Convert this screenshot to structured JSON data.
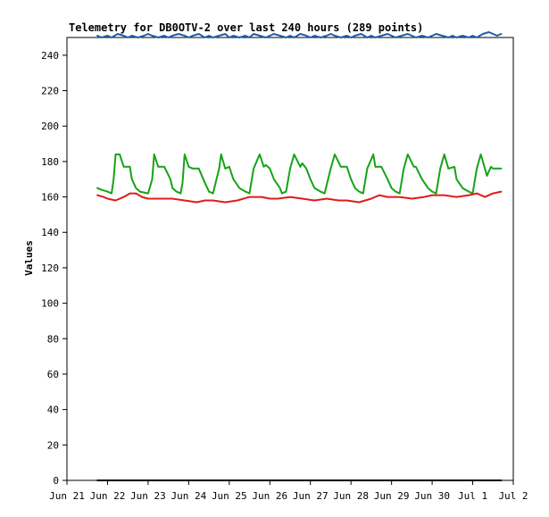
{
  "chart_data": {
    "type": "line",
    "title": "Telemetry for DB0OTV-2 over last 240 hours (289 points)",
    "ylabel": "Values",
    "xlabel": "",
    "ylim": [
      0,
      250
    ],
    "yticks": [
      0,
      20,
      40,
      60,
      80,
      100,
      120,
      140,
      160,
      180,
      200,
      220,
      240
    ],
    "xticks": [
      "Jun 21",
      "Jun 22",
      "Jun 23",
      "Jun 24",
      "Jun 25",
      "Jun 26",
      "Jun 27",
      "Jun 28",
      "Jun 29",
      "Jun 30",
      "Jul 1",
      "Jul 2"
    ],
    "grid": false,
    "series": [
      {
        "color": "#1f5fa8",
        "x": [
          0.75,
          0.85,
          1.0,
          1.1,
          1.25,
          1.4,
          1.5,
          1.6,
          1.75,
          1.9,
          2.0,
          2.1,
          2.25,
          2.4,
          2.5,
          2.6,
          2.75,
          2.9,
          3.0,
          3.1,
          3.25,
          3.4,
          3.5,
          3.6,
          3.75,
          3.9,
          4.0,
          4.1,
          4.25,
          4.4,
          4.5,
          4.6,
          4.75,
          4.9,
          5.0,
          5.1,
          5.25,
          5.4,
          5.5,
          5.6,
          5.75,
          5.9,
          6.0,
          6.1,
          6.25,
          6.4,
          6.5,
          6.6,
          6.75,
          6.9,
          7.0,
          7.1,
          7.25,
          7.4,
          7.5,
          7.6,
          7.75,
          7.9,
          8.0,
          8.1,
          8.25,
          8.4,
          8.5,
          8.6,
          8.75,
          8.9,
          9.0,
          9.1,
          9.25,
          9.4,
          9.5,
          9.6,
          9.75,
          9.9,
          10.0,
          10.1,
          10.25,
          10.4,
          10.5,
          10.6,
          10.7
        ],
        "y": [
          251,
          250,
          251,
          250,
          252,
          251,
          250,
          251,
          250,
          251,
          252,
          251,
          250,
          251,
          250,
          251,
          252,
          251,
          250,
          251,
          252,
          250,
          251,
          250,
          251,
          252,
          250,
          251,
          250,
          251,
          250,
          252,
          251,
          250,
          251,
          252,
          251,
          250,
          251,
          250,
          252,
          251,
          250,
          251,
          250,
          251,
          252,
          251,
          250,
          251,
          250,
          251,
          252,
          250,
          251,
          250,
          251,
          252,
          251,
          250,
          251,
          252,
          251,
          250,
          251,
          250,
          251,
          252,
          251,
          250,
          251,
          250,
          251,
          250,
          251,
          250,
          252,
          253,
          252,
          251,
          252
        ]
      },
      {
        "color": "#17a317",
        "x": [
          0.75,
          0.85,
          1.0,
          1.1,
          1.15,
          1.2,
          1.3,
          1.4,
          1.55,
          1.6,
          1.7,
          1.8,
          2.0,
          2.1,
          2.15,
          2.25,
          2.4,
          2.55,
          2.6,
          2.7,
          2.8,
          2.85,
          2.9,
          3.0,
          3.1,
          3.25,
          3.4,
          3.5,
          3.6,
          3.75,
          3.8,
          3.9,
          4.0,
          4.1,
          4.25,
          4.4,
          4.5,
          4.6,
          4.75,
          4.85,
          4.9,
          5.0,
          5.1,
          5.25,
          5.3,
          5.4,
          5.5,
          5.6,
          5.75,
          5.8,
          5.9,
          6.0,
          6.1,
          6.25,
          6.35,
          6.5,
          6.6,
          6.75,
          6.9,
          7.0,
          7.1,
          7.2,
          7.3,
          7.4,
          7.55,
          7.6,
          7.75,
          7.9,
          8.0,
          8.1,
          8.2,
          8.3,
          8.4,
          8.55,
          8.6,
          8.75,
          8.9,
          9.0,
          9.1,
          9.2,
          9.3,
          9.4,
          9.55,
          9.6,
          9.75,
          9.9,
          10.0,
          10.1,
          10.2,
          10.3,
          10.35,
          10.45,
          10.5,
          10.6,
          10.7
        ],
        "y": [
          165,
          164,
          163,
          162,
          170,
          184,
          184,
          177,
          177,
          170,
          165,
          163,
          162,
          170,
          184,
          177,
          177,
          170,
          165,
          163,
          162,
          168,
          184,
          177,
          176,
          176,
          168,
          163,
          162,
          176,
          184,
          176,
          177,
          170,
          165,
          163,
          162,
          176,
          184,
          177,
          178,
          176,
          170,
          165,
          162,
          163,
          176,
          184,
          177,
          179,
          176,
          170,
          165,
          163,
          162,
          176,
          184,
          177,
          177,
          170,
          165,
          163,
          162,
          176,
          184,
          177,
          177,
          170,
          165,
          163,
          162,
          176,
          184,
          177,
          177,
          170,
          165,
          163,
          162,
          176,
          184,
          176,
          177,
          170,
          165,
          163,
          162,
          176,
          184,
          176,
          172,
          177,
          176,
          176,
          176
        ]
      },
      {
        "color": "#e01b1b",
        "x": [
          0.75,
          0.9,
          1.0,
          1.2,
          1.4,
          1.55,
          1.7,
          1.85,
          2.0,
          2.3,
          2.6,
          2.9,
          3.2,
          3.4,
          3.6,
          3.9,
          4.2,
          4.5,
          4.8,
          5.0,
          5.2,
          5.5,
          5.8,
          6.1,
          6.4,
          6.7,
          6.9,
          7.2,
          7.5,
          7.7,
          7.9,
          8.2,
          8.5,
          8.8,
          9.0,
          9.3,
          9.6,
          9.9,
          10.1,
          10.3,
          10.5,
          10.7
        ],
        "y": [
          161,
          160,
          159,
          158,
          160,
          162,
          162,
          160,
          159,
          159,
          159,
          158,
          157,
          158,
          158,
          157,
          158,
          160,
          160,
          159,
          159,
          160,
          159,
          158,
          159,
          158,
          158,
          157,
          159,
          161,
          160,
          160,
          159,
          160,
          161,
          161,
          160,
          161,
          162,
          160,
          162,
          163
        ]
      },
      {
        "color": "#000000",
        "x": [
          0.75,
          10.7
        ],
        "y": [
          0,
          0
        ]
      }
    ]
  }
}
